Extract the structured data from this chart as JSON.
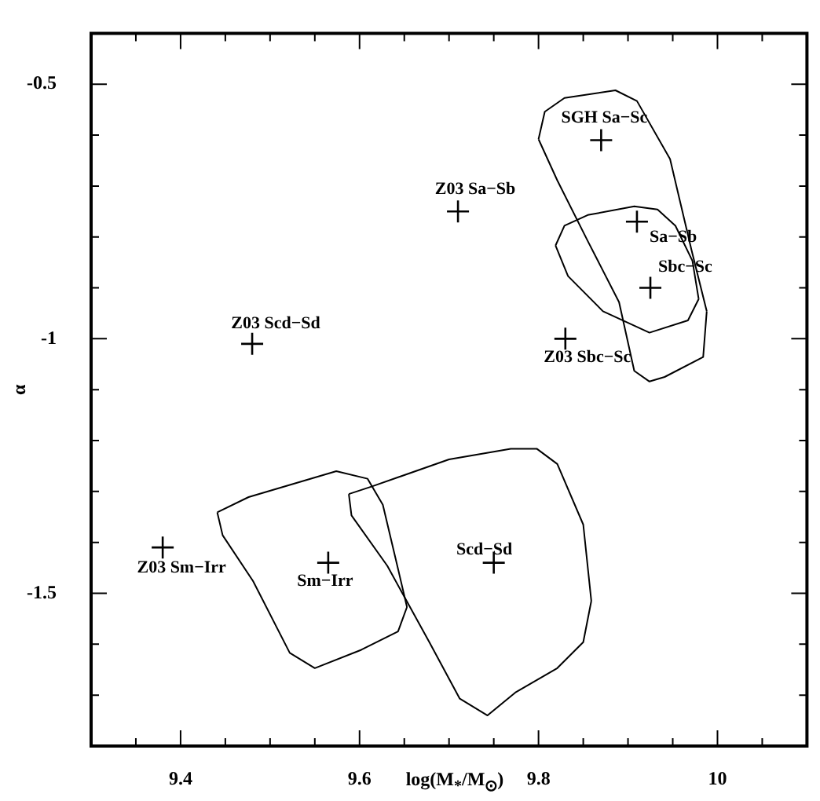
{
  "chart_data": {
    "type": "scatter",
    "xlabel": "log(M$_{*}$/M$_{⊙}$)",
    "ylabel": "α",
    "xlim": [
      9.3,
      10.1
    ],
    "ylim": [
      -1.8,
      -0.4
    ],
    "xticks": [
      {
        "value": 9.35,
        "label": null
      },
      9.4,
      {
        "value": 9.45,
        "label": null
      },
      {
        "value": 9.5,
        "label": null
      },
      {
        "value": 9.55,
        "label": null
      },
      9.6,
      {
        "value": 9.65,
        "label": null
      },
      {
        "value": 9.7,
        "label": null
      },
      {
        "value": 9.75,
        "label": null
      },
      9.8,
      {
        "value": 9.85,
        "label": null
      },
      {
        "value": 9.9,
        "label": null
      },
      {
        "value": 9.95,
        "label": null
      },
      10,
      {
        "value": 10.05,
        "label": null
      }
    ],
    "yticks": [
      -0.5,
      {
        "value": -0.6,
        "label": null
      },
      {
        "value": -0.7,
        "label": null
      },
      {
        "value": -0.8,
        "label": null
      },
      {
        "value": -0.9,
        "label": null
      },
      -1,
      {
        "value": -1.1,
        "label": null
      },
      {
        "value": -1.2,
        "label": null
      },
      {
        "value": -1.3,
        "label": null
      },
      {
        "value": -1.4,
        "label": null
      },
      -1.5,
      {
        "value": -1.6,
        "label": null
      },
      {
        "value": -1.7,
        "label": null
      }
    ],
    "grid": false,
    "marker": "cross",
    "series": [
      {
        "color": "#000000",
        "x": [
          9.87,
          9.71,
          9.91,
          9.925,
          9.83,
          9.48,
          9.38,
          9.565,
          9.75
        ],
        "values": [
          -0.61,
          -0.75,
          -0.77,
          -0.9,
          -1.0,
          -1.01,
          -1.41,
          -1.44,
          -1.44
        ]
      },
      {
        "type": "line",
        "marker": "none",
        "color": "#000000",
        "x": [
          9.8,
          9.807,
          9.829,
          9.886,
          9.91,
          9.947,
          9.971,
          9.988,
          null,
          9.8,
          9.821,
          9.855,
          9.89,
          9.907,
          9.924,
          9.941,
          9.984,
          9.988
        ],
        "values": [
          -0.608,
          -0.554,
          -0.527,
          -0.512,
          -0.533,
          -0.647,
          -0.826,
          -0.946,
          null,
          -0.608,
          -0.689,
          -0.808,
          -0.928,
          -1.063,
          -1.084,
          -1.075,
          -1.036,
          -0.946
        ]
      },
      {
        "type": "line",
        "marker": "none",
        "color": "#000000",
        "x": [
          9.819,
          9.829,
          9.855,
          9.907,
          9.933,
          9.953,
          9.972,
          9.979,
          null,
          9.819,
          9.833,
          9.872,
          9.924,
          9.967,
          9.979
        ],
        "values": [
          -0.817,
          -0.778,
          -0.757,
          -0.74,
          -0.746,
          -0.778,
          -0.847,
          -0.922,
          null,
          -0.817,
          -0.877,
          -0.946,
          -0.988,
          -0.964,
          -0.922
        ]
      },
      {
        "type": "line",
        "marker": "none",
        "color": "#000000",
        "x": [
          9.441,
          9.476,
          9.574,
          9.609,
          9.626,
          9.645,
          9.653,
          null,
          9.441,
          9.447,
          9.481,
          9.522,
          9.55,
          9.602,
          9.643,
          9.653
        ],
        "values": [
          -1.341,
          -1.311,
          -1.26,
          -1.275,
          -1.326,
          -1.467,
          -1.527,
          null,
          -1.341,
          -1.386,
          -1.476,
          -1.617,
          -1.647,
          -1.611,
          -1.575,
          -1.527
        ]
      },
      {
        "type": "line",
        "marker": "none",
        "color": "#000000",
        "x": [
          9.588,
          9.614,
          9.7,
          9.769,
          9.798,
          9.821,
          9.85,
          9.859,
          null,
          9.588,
          9.591,
          9.631,
          9.678,
          9.712,
          9.743,
          9.774,
          9.821,
          9.85,
          9.859
        ],
        "values": [
          -1.305,
          -1.29,
          -1.237,
          -1.216,
          -1.216,
          -1.246,
          -1.365,
          -1.515,
          null,
          -1.305,
          -1.347,
          -1.446,
          -1.596,
          -1.707,
          -1.74,
          -1.695,
          -1.647,
          -1.596,
          -1.515
        ]
      }
    ],
    "annotations": [
      {
        "text": "SGH Sa−Sc",
        "x": 9.87,
        "y": -0.61
      },
      {
        "text": "Z03 Sa−Sb",
        "x": 9.71,
        "y": -0.75
      },
      {
        "text": "Sa−Sb",
        "x": 9.91,
        "y": -0.77
      },
      {
        "text": "Sbc−Sc",
        "x": 9.925,
        "y": -0.9
      },
      {
        "text": "Z03 Sbc−Sc",
        "x": 9.83,
        "y": -1.0
      },
      {
        "text": "Z03 Scd−Sd",
        "x": 9.48,
        "y": -1.01
      },
      {
        "text": "Z03 Sm−Irr",
        "x": 9.38,
        "y": -1.41
      },
      {
        "text": "Sm−Irr",
        "x": 9.565,
        "y": -1.44
      },
      {
        "text": "Scd−Sd",
        "x": 9.75,
        "y": -1.44
      }
    ]
  }
}
